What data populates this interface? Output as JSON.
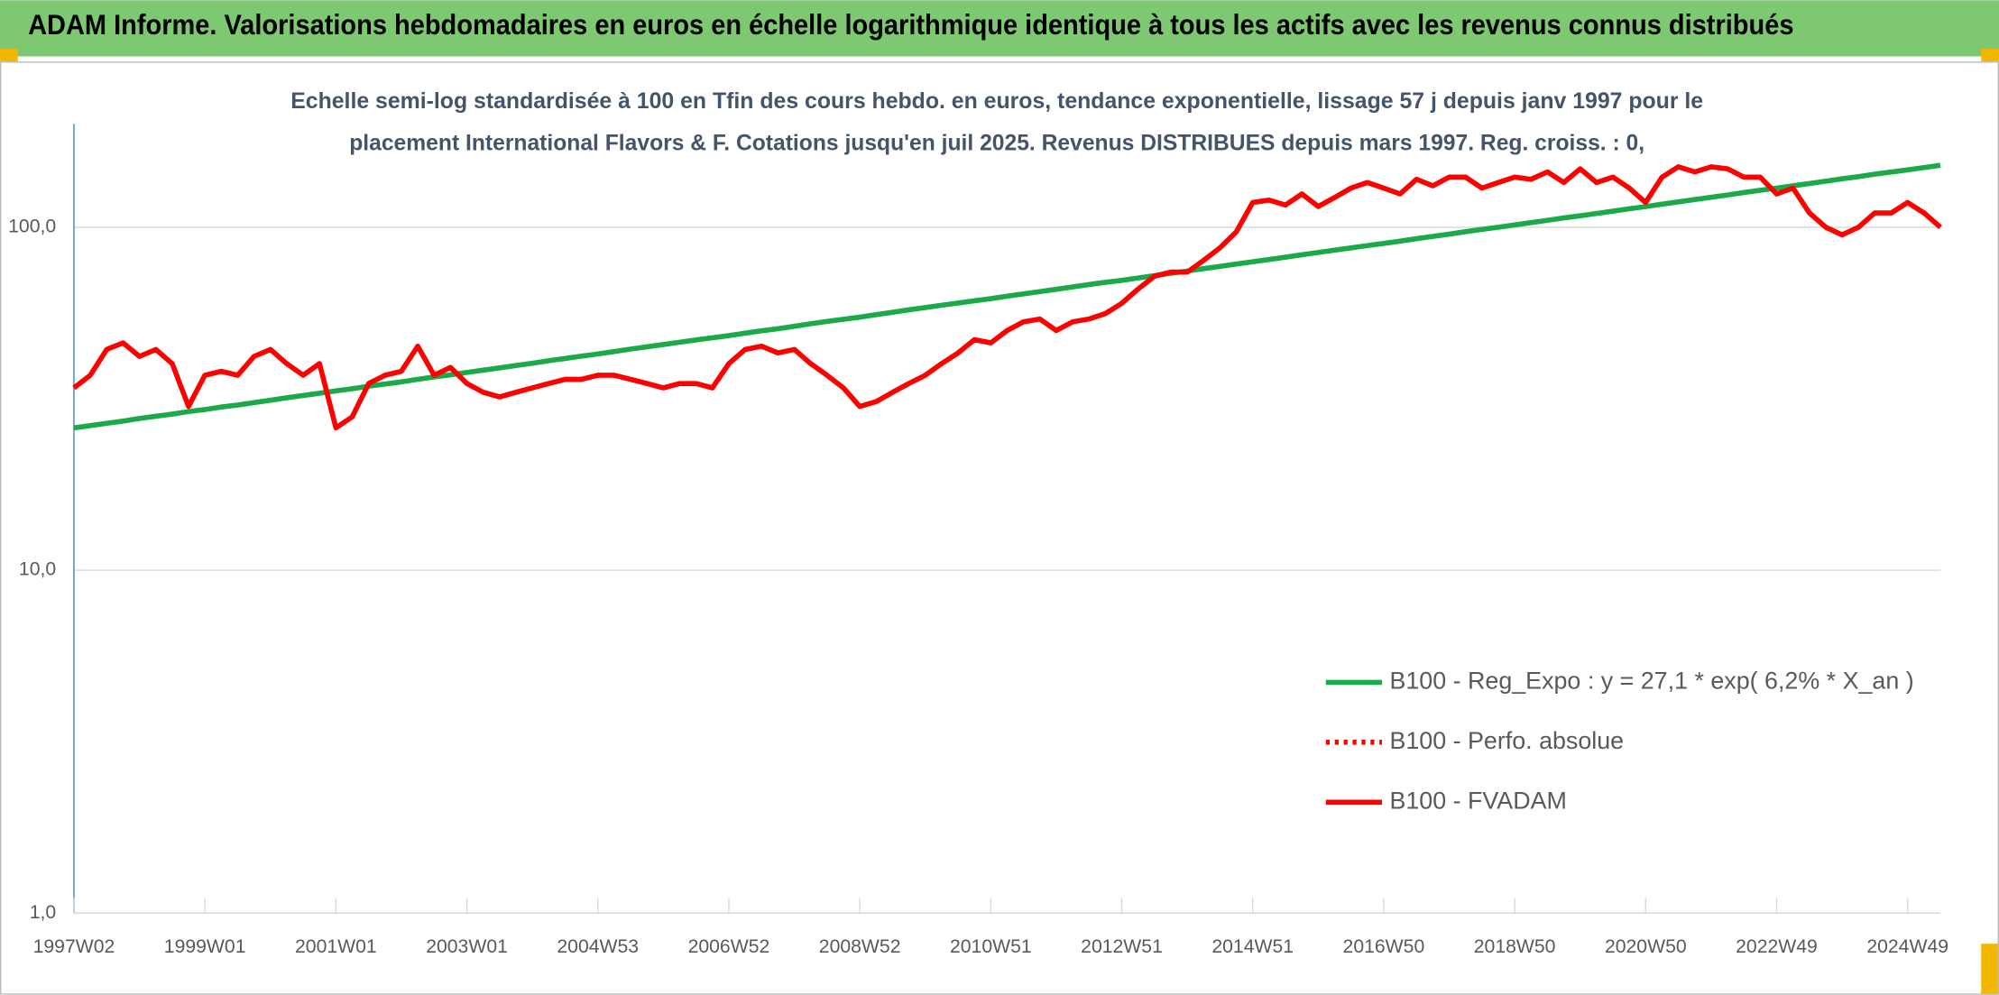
{
  "chart_data": {
    "type": "line",
    "title": "ADAM Informe. Valorisations hebdomadaires en euros en échelle logarithmique identique à tous les actifs avec les revenus connus distribués",
    "subtitle": [
      "Echelle semi-log standardisée à 100 en Tfin des cours hebdo. en euros, tendance exponentielle, lissage 57 j depuis janv 1997 pour le",
      "placement International Flavors & F. Cotations jusqu'en juil 2025. Revenus DISTRIBUES depuis mars 1997. Reg. croiss. : 0,"
    ],
    "categories": [
      "1997W02",
      null,
      null,
      null,
      null,
      null,
      null,
      null,
      "1999W01",
      null,
      null,
      null,
      null,
      null,
      null,
      null,
      "2001W01",
      null,
      null,
      null,
      null,
      null,
      null,
      null,
      "2003W01",
      null,
      null,
      null,
      null,
      null,
      null,
      null,
      "2004W53",
      null,
      null,
      null,
      null,
      null,
      null,
      null,
      "2006W52",
      null,
      null,
      null,
      null,
      null,
      null,
      null,
      "2008W52",
      null,
      null,
      null,
      null,
      null,
      null,
      null,
      "2010W51",
      null,
      null,
      null,
      null,
      null,
      null,
      null,
      "2012W51",
      null,
      null,
      null,
      null,
      null,
      null,
      null,
      "2014W51",
      null,
      null,
      null,
      null,
      null,
      null,
      null,
      "2016W50",
      null,
      null,
      null,
      null,
      null,
      null,
      null,
      "2018W50",
      null,
      null,
      null,
      null,
      null,
      null,
      null,
      "2020W50",
      null,
      null,
      null,
      null,
      null,
      null,
      null,
      "2022W49",
      null,
      null,
      null,
      null,
      null,
      null,
      null,
      "2024W49",
      null,
      null
    ],
    "series": [
      {
        "name": "B100 - Reg_Expo : y = 27,1 * exp( 6,2% *  X_an )",
        "color": "#1aaa4a",
        "style": "solid",
        "values": [
          26.0,
          26.4,
          26.8,
          27.2,
          27.7,
          28.1,
          28.5,
          29.0,
          29.4,
          29.9,
          30.3,
          30.8,
          31.3,
          31.8,
          32.3,
          32.8,
          33.3,
          33.8,
          34.4,
          34.9,
          35.4,
          36.0,
          36.6,
          37.1,
          37.7,
          38.3,
          38.9,
          39.5,
          40.1,
          40.8,
          41.4,
          42.1,
          42.7,
          43.4,
          44.1,
          44.8,
          45.5,
          46.2,
          46.9,
          47.6,
          48.3,
          49.1,
          49.9,
          50.6,
          51.4,
          52.3,
          53.1,
          53.9,
          54.7,
          55.6,
          56.5,
          57.4,
          58.3,
          59.2,
          60.1,
          61.0,
          61.9,
          62.9,
          63.9,
          64.9,
          65.9,
          67.0,
          68.0,
          69.1,
          70.0,
          71.1,
          72.2,
          73.4,
          74.5,
          75.7,
          76.9,
          78.1,
          79.3,
          80.5,
          81.8,
          83.1,
          84.4,
          85.7,
          87.0,
          88.4,
          89.7,
          91.1,
          92.6,
          94.0,
          95.5,
          97.0,
          98.5,
          100.0,
          101.5,
          103.1,
          104.7,
          106.4,
          108.0,
          109.7,
          111.4,
          113.2,
          114.9,
          116.7,
          118.6,
          120.4,
          122.3,
          124.2,
          126.2,
          128.2,
          130.0,
          132.1,
          134.1,
          136.2,
          138.4,
          140.5,
          142.7,
          144.9,
          147.0,
          149.3,
          151.6
        ]
      },
      {
        "name": "B100 - Perfo. absolue",
        "color": "#ff0000",
        "style": "dotted",
        "values": [
          34,
          37,
          44,
          46,
          42,
          44,
          40,
          30,
          37,
          38,
          37,
          42,
          44,
          40,
          37,
          40,
          26,
          28,
          35,
          37,
          38,
          45,
          37,
          39,
          35,
          33,
          32,
          33,
          34,
          35,
          36,
          36,
          37,
          37,
          36,
          35,
          34,
          35,
          35,
          34,
          40,
          44,
          45,
          43,
          44,
          40,
          37,
          34,
          30,
          31,
          33,
          35,
          37,
          40,
          43,
          47,
          46,
          50,
          53,
          54,
          50,
          53,
          54,
          56,
          60,
          66,
          72,
          74,
          74,
          80,
          87,
          97,
          118,
          120,
          116,
          125,
          115,
          122,
          130,
          135,
          130,
          125,
          138,
          132,
          140,
          140,
          130,
          135,
          140,
          138,
          145,
          135,
          148,
          135,
          140,
          130,
          118,
          140,
          150,
          145,
          150,
          148,
          140,
          140,
          125,
          130,
          110,
          100,
          95,
          100,
          110,
          110,
          118,
          110,
          100
        ]
      },
      {
        "name": "B100 - FVADAM",
        "color": "#ff0000",
        "style": "solid",
        "values": [
          34,
          37,
          44,
          46,
          42,
          44,
          40,
          30,
          37,
          38,
          37,
          42,
          44,
          40,
          37,
          40,
          26,
          28,
          35,
          37,
          38,
          45,
          37,
          39,
          35,
          33,
          32,
          33,
          34,
          35,
          36,
          36,
          37,
          37,
          36,
          35,
          34,
          35,
          35,
          34,
          40,
          44,
          45,
          43,
          44,
          40,
          37,
          34,
          30,
          31,
          33,
          35,
          37,
          40,
          43,
          47,
          46,
          50,
          53,
          54,
          50,
          53,
          54,
          56,
          60,
          66,
          72,
          74,
          74,
          80,
          87,
          97,
          118,
          120,
          116,
          125,
          115,
          122,
          130,
          135,
          130,
          125,
          138,
          132,
          140,
          140,
          130,
          135,
          140,
          138,
          145,
          135,
          148,
          135,
          140,
          130,
          118,
          140,
          150,
          145,
          150,
          148,
          140,
          140,
          125,
          130,
          110,
          100,
          95,
          100,
          110,
          110,
          118,
          110,
          100
        ]
      }
    ],
    "ylim": [
      1,
      200
    ],
    "log_y": true,
    "grid": true,
    "legend": "lower right",
    "yticks": [
      {
        "value": 1,
        "label": "1,0"
      },
      {
        "value": 10,
        "label": "10,0"
      },
      {
        "value": 100,
        "label": "100,0"
      }
    ]
  }
}
